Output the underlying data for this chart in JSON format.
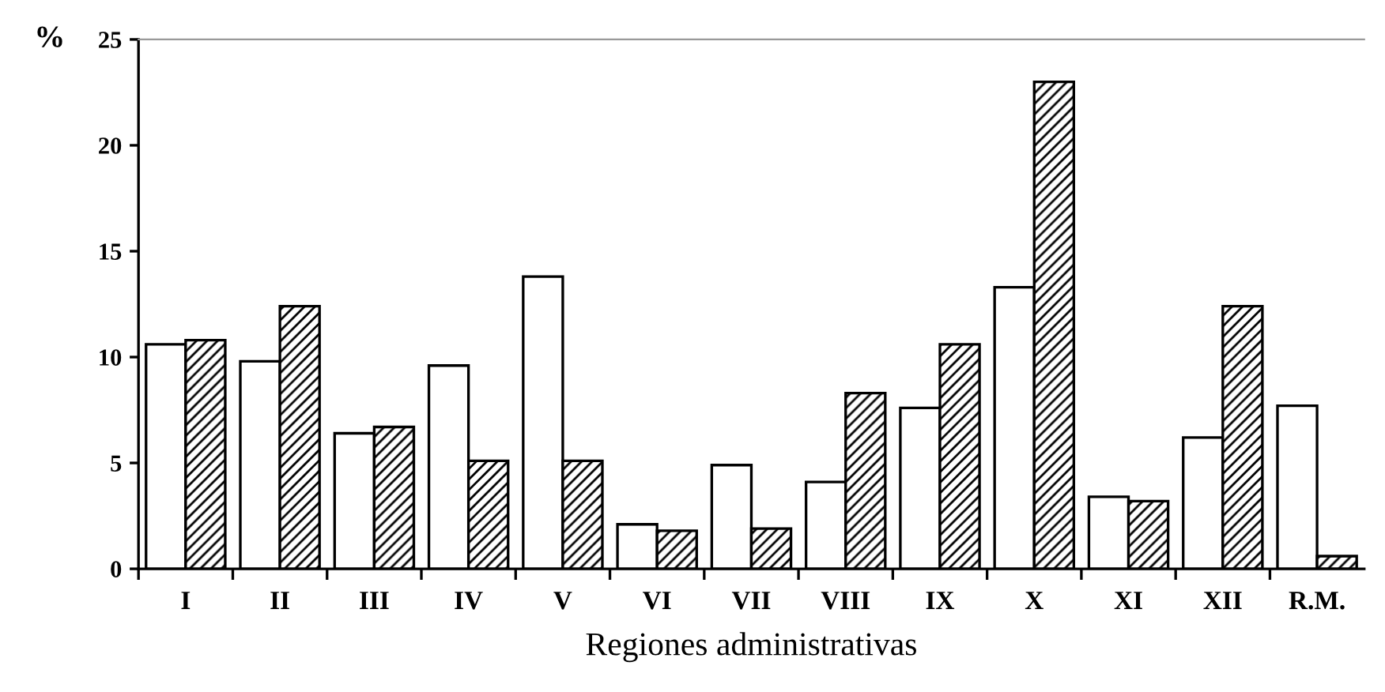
{
  "chart_data": {
    "type": "bar",
    "xlabel": "Regiones administrativas",
    "ylabel": "%",
    "categories": [
      "I",
      "II",
      "III",
      "IV",
      "V",
      "VI",
      "VII",
      "VIII",
      "IX",
      "X",
      "XI",
      "XII",
      "R.M."
    ],
    "series": [
      {
        "color": "#ffffff",
        "values": [
          10.6,
          9.8,
          6.4,
          9.6,
          13.8,
          2.1,
          4.9,
          4.1,
          7.6,
          13.3,
          3.4,
          6.2,
          7.7
        ]
      },
      {
        "color": "#000000",
        "values": [
          10.8,
          12.4,
          6.7,
          5.1,
          5.1,
          1.8,
          1.9,
          8.3,
          10.6,
          23.0,
          3.2,
          12.4,
          0.6
        ]
      }
    ],
    "ylim": [
      0,
      25
    ],
    "yticks": [
      0,
      5,
      10,
      15,
      20,
      25
    ],
    "grid": false,
    "legend": false
  }
}
